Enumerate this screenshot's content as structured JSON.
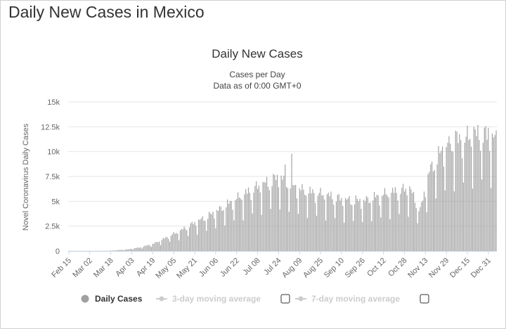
{
  "page": {
    "title": "Daily New Cases in Mexico"
  },
  "legend": {
    "items": [
      {
        "label": "Daily Cases",
        "active": true,
        "checkbox": false
      },
      {
        "label": "3-day moving average",
        "active": false,
        "checkbox": true
      },
      {
        "label": "7-day moving average",
        "active": false,
        "checkbox": true
      }
    ]
  },
  "colors": {
    "bar": "#a0a0a0",
    "grid": "#e6e6e6",
    "legend_active": "#333333",
    "legend_inactive": "#cccccc",
    "legend_marker_active": "#a0a0a0"
  },
  "chart_data": {
    "type": "bar",
    "title": "Daily New Cases",
    "subtitle_lines": [
      "Cases per Day",
      "Data as of 0:00 GMT+0"
    ],
    "ylabel": "Novel Coronavirus Daily Cases",
    "xlabel": "",
    "ylim": [
      0,
      15000
    ],
    "yticks": [
      0,
      2500,
      5000,
      7500,
      10000,
      12500,
      15000
    ],
    "ytick_labels": [
      "0",
      "2.5k",
      "5k",
      "7.5k",
      "10k",
      "12.5k",
      "15k"
    ],
    "grid": true,
    "start_date": "2020-02-15",
    "num_days": 327,
    "xtick_labels": [
      "Feb 15",
      "Mar 02",
      "Mar 18",
      "Apr 03",
      "Apr 19",
      "May 05",
      "May 21",
      "Jun 06",
      "Jun 22",
      "Jul 08",
      "Jul 24",
      "Aug 09",
      "Aug 25",
      "Sep 10",
      "Sep 26",
      "Oct 12",
      "Oct 28",
      "Nov 13",
      "Nov 29",
      "Dec 15",
      "Dec 31"
    ],
    "xtick_step_days": 16,
    "weekly_profile": [
      0.62,
      1.05,
      1.12,
      1.12,
      1.1,
      1.05,
      0.94
    ],
    "anchors": [
      {
        "day": 0,
        "value": 0
      },
      {
        "day": 14,
        "value": 0
      },
      {
        "day": 30,
        "value": 10
      },
      {
        "day": 45,
        "value": 150
      },
      {
        "day": 55,
        "value": 350
      },
      {
        "day": 65,
        "value": 700
      },
      {
        "day": 75,
        "value": 1300
      },
      {
        "day": 85,
        "value": 1900
      },
      {
        "day": 95,
        "value": 2600
      },
      {
        "day": 105,
        "value": 3200
      },
      {
        "day": 115,
        "value": 3900
      },
      {
        "day": 125,
        "value": 4700
      },
      {
        "day": 135,
        "value": 5400
      },
      {
        "day": 145,
        "value": 6100
      },
      {
        "day": 155,
        "value": 6600
      },
      {
        "day": 160,
        "value": 7000
      },
      {
        "day": 170,
        "value": 6200
      },
      {
        "day": 180,
        "value": 5600
      },
      {
        "day": 195,
        "value": 5300
      },
      {
        "day": 210,
        "value": 4800
      },
      {
        "day": 225,
        "value": 4700
      },
      {
        "day": 240,
        "value": 5300
      },
      {
        "day": 250,
        "value": 5600
      },
      {
        "day": 260,
        "value": 5900
      },
      {
        "day": 268,
        "value": 3800
      },
      {
        "day": 275,
        "value": 7500
      },
      {
        "day": 285,
        "value": 9500
      },
      {
        "day": 300,
        "value": 10500
      },
      {
        "day": 315,
        "value": 11000
      },
      {
        "day": 326,
        "value": 10500
      }
    ],
    "peaks": [
      {
        "date": "Aug 03",
        "value": 9800
      },
      {
        "date": "Jul 29",
        "value": 8700
      },
      {
        "date": "Nov 30",
        "value": 10900
      },
      {
        "date": "Dec 06",
        "value": 12100
      },
      {
        "date": "Dec 20",
        "value": 12500
      },
      {
        "date": "Dec 31",
        "value": 12400
      }
    ]
  }
}
